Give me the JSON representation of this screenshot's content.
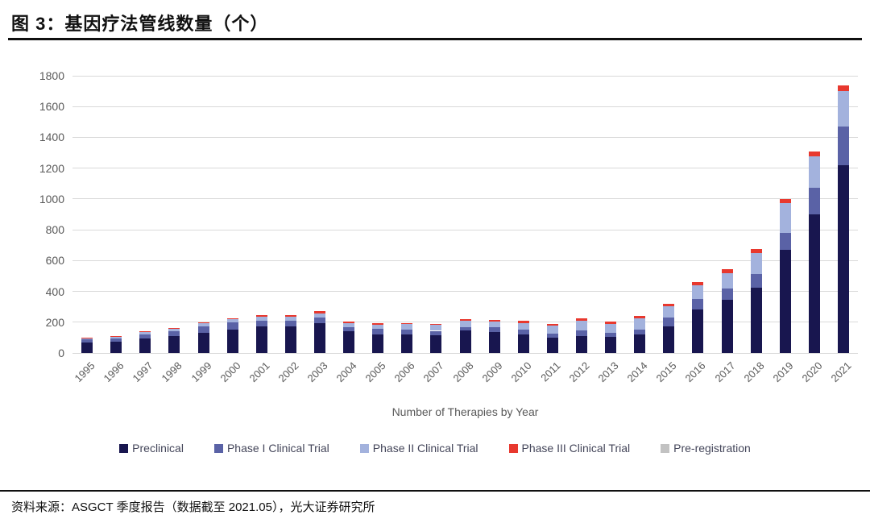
{
  "figure": {
    "title": "图 3：基因疗法管线数量（个）",
    "source": "资料来源：ASGCT 季度报告（数据截至 2021.05），光大证券研究所"
  },
  "chart_data": {
    "type": "bar",
    "stacked": true,
    "title": "",
    "xlabel": "Number of Therapies by Year",
    "ylabel": "",
    "ylim": [
      0,
      1800
    ],
    "ytick_step": 200,
    "grid": true,
    "legend_position": "bottom",
    "categories": [
      "1995",
      "1996",
      "1997",
      "1998",
      "1999",
      "2000",
      "2001",
      "2002",
      "2003",
      "2004",
      "2005",
      "2006",
      "2007",
      "2008",
      "2009",
      "2010",
      "2011",
      "2012",
      "2013",
      "2014",
      "2015",
      "2016",
      "2017",
      "2018",
      "2019",
      "2020",
      "2021"
    ],
    "series": [
      {
        "name": "Preclinical",
        "color": "#18164f",
        "values": [
          70,
          73,
          95,
          110,
          133,
          152,
          171,
          175,
          196,
          139,
          122,
          118,
          115,
          144,
          135,
          120,
          102,
          108,
          103,
          122,
          174,
          282,
          345,
          425,
          670,
          900,
          1220
        ]
      },
      {
        "name": "Phase I Clinical Trial",
        "color": "#5a62a6",
        "values": [
          18,
          20,
          25,
          33,
          40,
          48,
          38,
          33,
          35,
          31,
          34,
          35,
          29,
          26,
          30,
          30,
          25,
          40,
          28,
          31,
          57,
          69,
          75,
          88,
          112,
          175,
          252
        ]
      },
      {
        "name": "Phase II Clinical Trial",
        "color": "#a3b2dd",
        "values": [
          8,
          12,
          15,
          13,
          20,
          20,
          27,
          26,
          27,
          26,
          27,
          35,
          38,
          40,
          40,
          45,
          50,
          64,
          60,
          70,
          70,
          90,
          100,
          135,
          190,
          200,
          228
        ]
      },
      {
        "name": "Phase III Clinical Trial",
        "color": "#e8382e",
        "values": [
          4,
          5,
          5,
          4,
          5,
          5,
          9,
          11,
          14,
          9,
          10,
          8,
          8,
          10,
          12,
          12,
          13,
          12,
          14,
          17,
          19,
          18,
          22,
          25,
          26,
          35,
          35
        ]
      },
      {
        "name": "Pre-registration",
        "color": "#c2c2c2",
        "values": [
          0,
          0,
          0,
          0,
          0,
          0,
          0,
          0,
          0,
          0,
          0,
          0,
          0,
          0,
          0,
          0,
          0,
          0,
          0,
          0,
          0,
          0,
          0,
          0,
          0,
          0,
          0
        ]
      }
    ],
    "colors": {
      "gridline": "#d9d9d9",
      "axis_text": "#595959",
      "legend_text": "#44465a",
      "rule": "#101010"
    }
  }
}
